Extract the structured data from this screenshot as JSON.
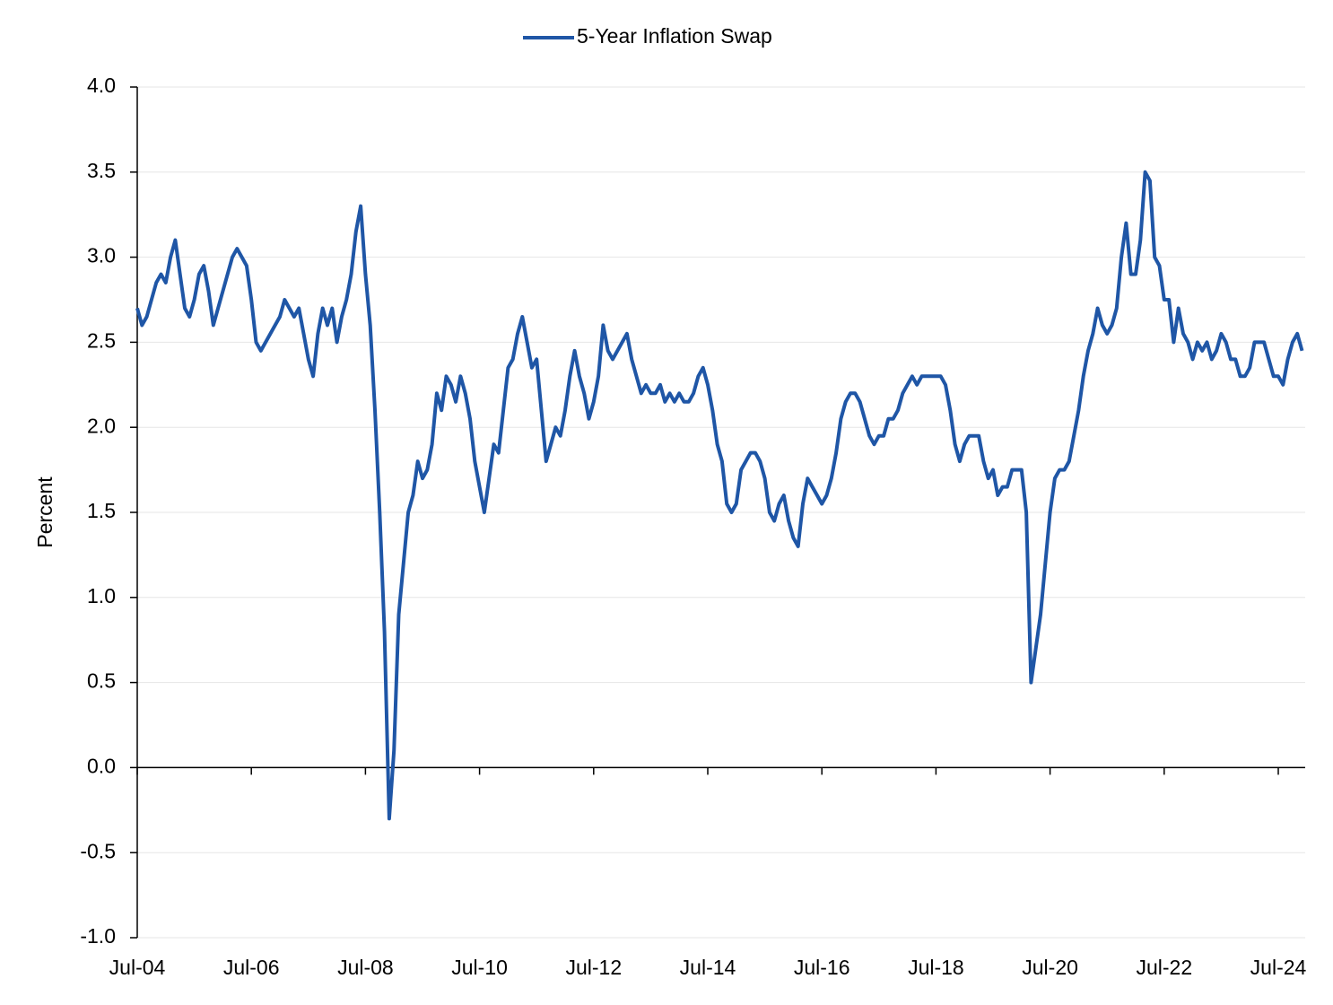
{
  "chart_data": {
    "type": "line",
    "y_label": "Percent",
    "x": [
      "Jul-04",
      "Aug-04",
      "Sep-04",
      "Oct-04",
      "Nov-04",
      "Dec-04",
      "Jan-05",
      "Feb-05",
      "Mar-05",
      "Apr-05",
      "May-05",
      "Jun-05",
      "Jul-05",
      "Aug-05",
      "Sep-05",
      "Oct-05",
      "Nov-05",
      "Dec-05",
      "Jan-06",
      "Feb-06",
      "Mar-06",
      "Apr-06",
      "May-06",
      "Jun-06",
      "Jul-06",
      "Aug-06",
      "Sep-06",
      "Oct-06",
      "Nov-06",
      "Dec-06",
      "Jan-07",
      "Feb-07",
      "Mar-07",
      "Apr-07",
      "May-07",
      "Jun-07",
      "Jul-07",
      "Aug-07",
      "Sep-07",
      "Oct-07",
      "Nov-07",
      "Dec-07",
      "Jan-08",
      "Feb-08",
      "Mar-08",
      "Apr-08",
      "May-08",
      "Jun-08",
      "Jul-08",
      "Aug-08",
      "Sep-08",
      "Oct-08",
      "Nov-08",
      "Dec-08",
      "Jan-09",
      "Feb-09",
      "Mar-09",
      "Apr-09",
      "May-09",
      "Jun-09",
      "Jul-09",
      "Aug-09",
      "Sep-09",
      "Oct-09",
      "Nov-09",
      "Dec-09",
      "Jan-10",
      "Feb-10",
      "Mar-10",
      "Apr-10",
      "May-10",
      "Jun-10",
      "Jul-10",
      "Aug-10",
      "Sep-10",
      "Oct-10",
      "Nov-10",
      "Dec-10",
      "Jan-11",
      "Feb-11",
      "Mar-11",
      "Apr-11",
      "May-11",
      "Jun-11",
      "Jul-11",
      "Aug-11",
      "Sep-11",
      "Oct-11",
      "Nov-11",
      "Dec-11",
      "Jan-12",
      "Feb-12",
      "Mar-12",
      "Apr-12",
      "May-12",
      "Jun-12",
      "Jul-12",
      "Aug-12",
      "Sep-12",
      "Oct-12",
      "Nov-12",
      "Dec-12",
      "Jan-13",
      "Feb-13",
      "Mar-13",
      "Apr-13",
      "May-13",
      "Jun-13",
      "Jul-13",
      "Aug-13",
      "Sep-13",
      "Oct-13",
      "Nov-13",
      "Dec-13",
      "Jan-14",
      "Feb-14",
      "Mar-14",
      "Apr-14",
      "May-14",
      "Jun-14",
      "Jul-14",
      "Aug-14",
      "Sep-14",
      "Oct-14",
      "Nov-14",
      "Dec-14",
      "Jan-15",
      "Feb-15",
      "Mar-15",
      "Apr-15",
      "May-15",
      "Jun-15",
      "Jul-15",
      "Aug-15",
      "Sep-15",
      "Oct-15",
      "Nov-15",
      "Dec-15",
      "Jan-16",
      "Feb-16",
      "Mar-16",
      "Apr-16",
      "May-16",
      "Jun-16",
      "Jul-16",
      "Aug-16",
      "Sep-16",
      "Oct-16",
      "Nov-16",
      "Dec-16",
      "Jan-17",
      "Feb-17",
      "Mar-17",
      "Apr-17",
      "May-17",
      "Jun-17",
      "Jul-17",
      "Aug-17",
      "Sep-17",
      "Oct-17",
      "Nov-17",
      "Dec-17",
      "Jan-18",
      "Feb-18",
      "Mar-18",
      "Apr-18",
      "May-18",
      "Jun-18",
      "Jul-18",
      "Aug-18",
      "Sep-18",
      "Oct-18",
      "Nov-18",
      "Dec-18",
      "Jan-19",
      "Feb-19",
      "Mar-19",
      "Apr-19",
      "May-19",
      "Jun-19",
      "Jul-19",
      "Aug-19",
      "Sep-19",
      "Oct-19",
      "Nov-19",
      "Dec-19",
      "Jan-20",
      "Feb-20",
      "Mar-20",
      "Apr-20",
      "May-20",
      "Jun-20",
      "Jul-20",
      "Aug-20",
      "Sep-20",
      "Oct-20",
      "Nov-20",
      "Dec-20",
      "Jan-21",
      "Feb-21",
      "Mar-21",
      "Apr-21",
      "May-21",
      "Jun-21",
      "Jul-21",
      "Aug-21",
      "Sep-21",
      "Oct-21",
      "Nov-21",
      "Dec-21",
      "Jan-22",
      "Feb-22",
      "Mar-22",
      "Apr-22",
      "May-22",
      "Jun-22",
      "Jul-22",
      "Aug-22",
      "Sep-22",
      "Oct-22",
      "Nov-22",
      "Dec-22",
      "Jan-23",
      "Feb-23",
      "Mar-23",
      "Apr-23",
      "May-23",
      "Jun-23",
      "Jul-23",
      "Aug-23",
      "Sep-23",
      "Oct-23",
      "Nov-23",
      "Dec-23",
      "Jan-24",
      "Feb-24",
      "Mar-24",
      "Apr-24",
      "May-24",
      "Jun-24",
      "Jul-24",
      "Aug-24",
      "Sep-24",
      "Oct-24",
      "Nov-24",
      "Dec-24"
    ],
    "series": [
      {
        "name": "5-Year Inflation Swap",
        "color": "#1f56a6",
        "values": [
          2.7,
          2.6,
          2.65,
          2.75,
          2.85,
          2.9,
          2.85,
          3.0,
          3.1,
          2.9,
          2.7,
          2.65,
          2.75,
          2.9,
          2.95,
          2.8,
          2.6,
          2.7,
          2.8,
          2.9,
          3.0,
          3.05,
          3.0,
          2.95,
          2.75,
          2.5,
          2.45,
          2.5,
          2.55,
          2.6,
          2.65,
          2.75,
          2.7,
          2.65,
          2.7,
          2.55,
          2.4,
          2.3,
          2.55,
          2.7,
          2.6,
          2.7,
          2.5,
          2.65,
          2.75,
          2.9,
          3.15,
          3.3,
          2.9,
          2.6,
          2.1,
          1.5,
          0.8,
          -0.3,
          0.1,
          0.9,
          1.2,
          1.5,
          1.6,
          1.8,
          1.7,
          1.75,
          1.9,
          2.2,
          2.1,
          2.3,
          2.25,
          2.15,
          2.3,
          2.2,
          2.05,
          1.8,
          1.65,
          1.5,
          1.7,
          1.9,
          1.85,
          2.1,
          2.35,
          2.4,
          2.55,
          2.65,
          2.5,
          2.35,
          2.4,
          2.1,
          1.8,
          1.9,
          2.0,
          1.95,
          2.1,
          2.3,
          2.45,
          2.3,
          2.2,
          2.05,
          2.15,
          2.3,
          2.6,
          2.45,
          2.4,
          2.45,
          2.5,
          2.55,
          2.4,
          2.3,
          2.2,
          2.25,
          2.2,
          2.2,
          2.25,
          2.15,
          2.2,
          2.15,
          2.2,
          2.15,
          2.15,
          2.2,
          2.3,
          2.35,
          2.25,
          2.1,
          1.9,
          1.8,
          1.55,
          1.5,
          1.55,
          1.75,
          1.8,
          1.85,
          1.85,
          1.8,
          1.7,
          1.5,
          1.45,
          1.55,
          1.6,
          1.45,
          1.35,
          1.3,
          1.55,
          1.7,
          1.65,
          1.6,
          1.55,
          1.6,
          1.7,
          1.85,
          2.05,
          2.15,
          2.2,
          2.2,
          2.15,
          2.05,
          1.95,
          1.9,
          1.95,
          1.95,
          2.05,
          2.05,
          2.1,
          2.2,
          2.25,
          2.3,
          2.25,
          2.3,
          2.3,
          2.3,
          2.3,
          2.3,
          2.25,
          2.1,
          1.9,
          1.8,
          1.9,
          1.95,
          1.95,
          1.95,
          1.8,
          1.7,
          1.75,
          1.6,
          1.65,
          1.65,
          1.75,
          1.75,
          1.75,
          1.5,
          0.5,
          0.7,
          0.9,
          1.2,
          1.5,
          1.7,
          1.75,
          1.75,
          1.8,
          1.95,
          2.1,
          2.3,
          2.45,
          2.55,
          2.7,
          2.6,
          2.55,
          2.6,
          2.7,
          3.0,
          3.2,
          2.9,
          2.9,
          3.1,
          3.5,
          3.45,
          3.0,
          2.95,
          2.75,
          2.75,
          2.5,
          2.7,
          2.55,
          2.5,
          2.4,
          2.5,
          2.45,
          2.5,
          2.4,
          2.45,
          2.55,
          2.5,
          2.4,
          2.4,
          2.3,
          2.3,
          2.35,
          2.5,
          2.5,
          2.5,
          2.4,
          2.3,
          2.3,
          2.25,
          2.4,
          2.5,
          2.55,
          2.45
        ]
      }
    ],
    "xticks": [
      "Jul-04",
      "Jul-06",
      "Jul-08",
      "Jul-10",
      "Jul-12",
      "Jul-14",
      "Jul-16",
      "Jul-18",
      "Jul-20",
      "Jul-22",
      "Jul-24"
    ],
    "ylim": [
      -1,
      4
    ],
    "yticks": [
      {
        "value": -1,
        "label": "-1.0"
      },
      -0.5,
      {
        "value": 0,
        "label": "0.0"
      },
      0.5,
      {
        "value": 1,
        "label": "1.0"
      },
      1.5,
      {
        "value": 2,
        "label": "2.0"
      },
      2.5,
      {
        "value": 3,
        "label": "3.0"
      },
      3.5,
      {
        "value": 4,
        "label": "4.0"
      }
    ],
    "grid": true,
    "legend": "top"
  }
}
